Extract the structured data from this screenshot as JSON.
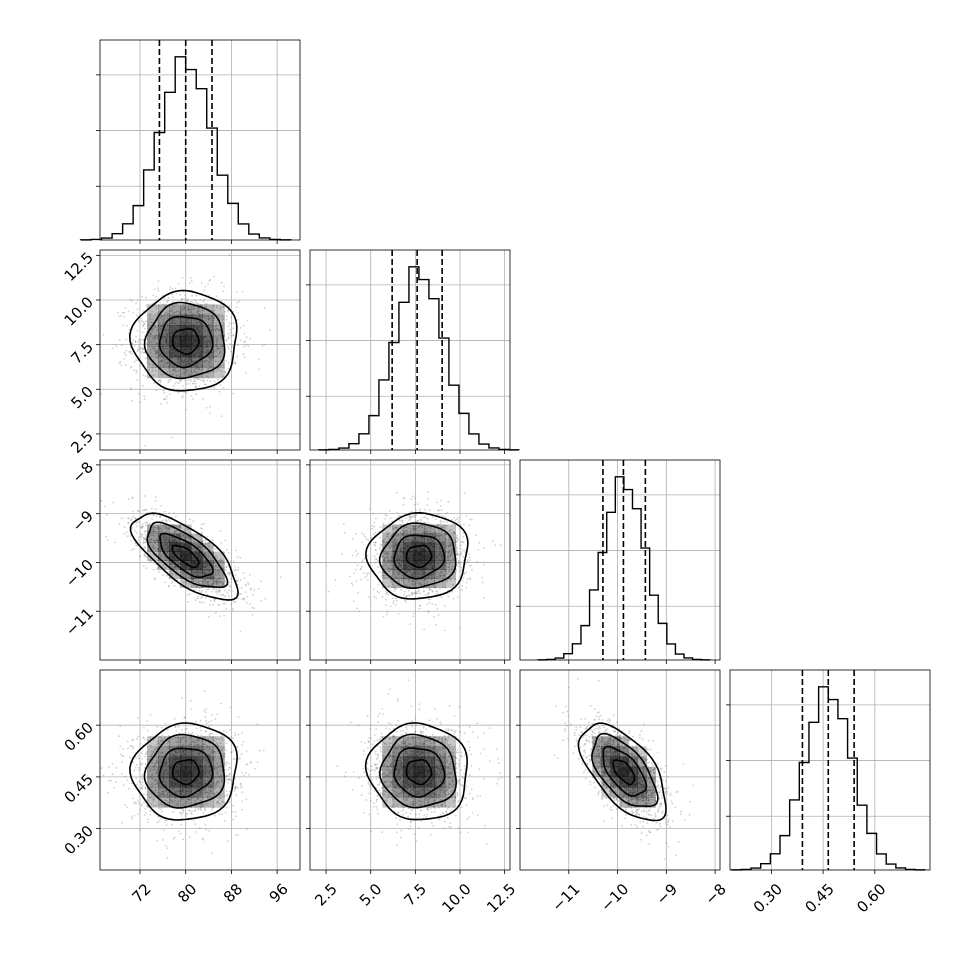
{
  "chart_data": {
    "type": "corner",
    "grid": true,
    "parameters": [
      {
        "range": [
          65,
          100
        ],
        "ticks": [
          72,
          80,
          88,
          96
        ],
        "tick_labels": [
          "72",
          "80",
          "88",
          "96"
        ],
        "mean": 80.0,
        "sd": 4.6,
        "quantiles": [
          75.4,
          80.0,
          84.6
        ]
      },
      {
        "range": [
          1.6,
          12.8
        ],
        "ticks": [
          2.5,
          5.0,
          7.5,
          10.0,
          12.5
        ],
        "tick_labels": [
          "2.5",
          "5.0",
          "7.5",
          "10.0",
          "12.5"
        ],
        "mean": 7.7,
        "sd": 1.4,
        "quantiles": [
          6.2,
          7.6,
          9.0
        ]
      },
      {
        "range": [
          -12.0,
          -7.9
        ],
        "ticks": [
          -11,
          -10,
          -9,
          -8
        ],
        "tick_labels": [
          "−11",
          "−10",
          "−9",
          "−8"
        ],
        "mean": -9.87,
        "sd": 0.44,
        "quantiles": [
          -10.3,
          -9.88,
          -9.43
        ]
      },
      {
        "range": [
          0.18,
          0.76
        ],
        "ticks": [
          0.3,
          0.45,
          0.6
        ],
        "tick_labels": [
          "0.30",
          "0.45",
          "0.60"
        ],
        "mean": 0.465,
        "sd": 0.07,
        "quantiles": [
          0.39,
          0.465,
          0.54
        ]
      }
    ],
    "correlations": [
      [
        1.0,
        0.0,
        -0.7,
        0.05
      ],
      [
        0.0,
        1.0,
        0.05,
        -0.05
      ],
      [
        -0.7,
        0.05,
        1.0,
        -0.6
      ],
      [
        0.05,
        -0.05,
        -0.6,
        1.0
      ]
    ]
  }
}
